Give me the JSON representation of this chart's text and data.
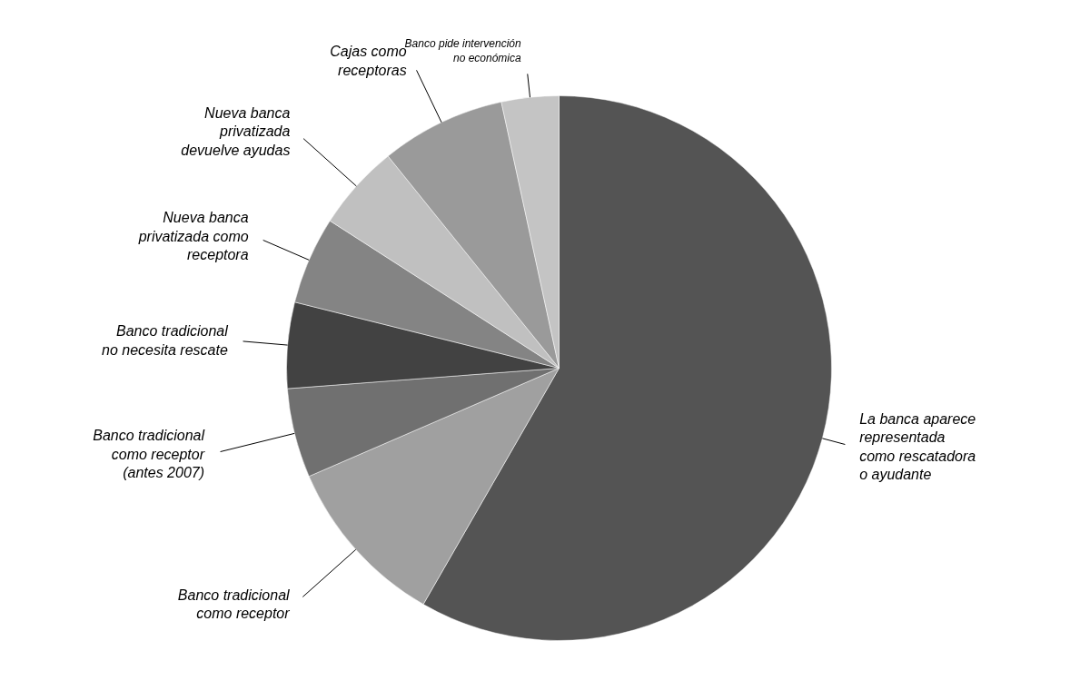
{
  "chart_data": {
    "type": "pie",
    "categories": [
      "La banca aparece\nrepresentada\ncomo rescatadora\no ayudante",
      "Banco tradicional\ncomo receptor",
      "Banco tradicional\ncomo receptor\n(antes 2007)",
      "Banco tradicional\nno necesita rescate",
      "Nueva banca\nprivatizada como\nreceptora",
      "Nueva banca\nprivatizada\ndevuelve ayudas",
      "Cajas como\nreceptoras",
      "Banco pide intervención\nno económica"
    ],
    "values": [
      58.3,
      10.2,
      5.3,
      5.1,
      5.2,
      5.1,
      7.4,
      3.4
    ],
    "colors": [
      "#545454",
      "#a0a0a0",
      "#707070",
      "#424242",
      "#848484",
      "#c0c0c0",
      "#9a9a9a",
      "#c4c4c4"
    ]
  }
}
